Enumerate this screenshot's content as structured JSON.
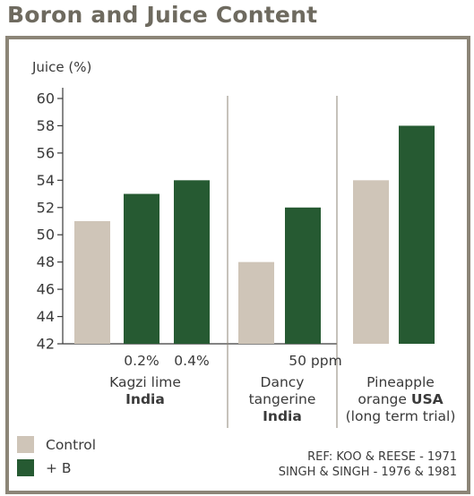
{
  "title": "Boron and Juice Content",
  "chart_data": {
    "type": "bar",
    "ylabel": "Juice (%)",
    "ylim": [
      42,
      60
    ],
    "yticks": [
      42,
      44,
      46,
      48,
      50,
      52,
      54,
      56,
      58,
      60
    ],
    "grid": false,
    "legend_position": "bottom-left",
    "groups": [
      {
        "sublabels": [
          "",
          "0.2%",
          "0.4%"
        ],
        "label_lines": [
          "Kagzi lime"
        ],
        "label_bold": "India",
        "bars": [
          {
            "series": "Control",
            "value": 51
          },
          {
            "series": "+ B",
            "value": 53
          },
          {
            "series": "+ B",
            "value": 54
          }
        ]
      },
      {
        "sublabels": [
          "",
          "50 ppm"
        ],
        "label_lines": [
          "Dancy",
          "tangerine"
        ],
        "label_bold": "India",
        "bars": [
          {
            "series": "Control",
            "value": 48
          },
          {
            "series": "+ B",
            "value": 52
          }
        ]
      },
      {
        "sublabels": [
          "",
          ""
        ],
        "label_lines": [
          "Pineapple"
        ],
        "label_mixed": {
          "normal": "orange ",
          "bold": "USA"
        },
        "label_extra": "(long term trial)",
        "bars": [
          {
            "series": "Control",
            "value": 54
          },
          {
            "series": "+ B",
            "value": 58
          }
        ]
      }
    ],
    "legend": [
      {
        "name": "Control",
        "color": "#cfc5b8"
      },
      {
        "name": "+ B",
        "color": "#265a32"
      }
    ],
    "reference_lines": [
      "REF: KOO & REESE  - 1971",
      "SINGH & SINGH - 1976 & 1981"
    ]
  }
}
